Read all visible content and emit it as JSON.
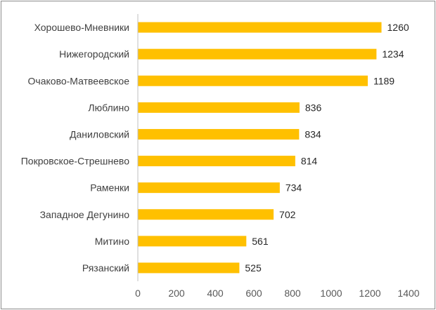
{
  "chart_data": {
    "type": "bar",
    "orientation": "horizontal",
    "categories": [
      "Хорошево-Мневники",
      "Нижегородский",
      "Очаково-Матвеевское",
      "Люблино",
      "Даниловский",
      "Покровское-Стрешнево",
      "Раменки",
      "Западное Дегунино",
      "Митино",
      "Рязанский"
    ],
    "values": [
      1260,
      1234,
      1189,
      836,
      834,
      814,
      734,
      702,
      561,
      525
    ],
    "xlim": [
      0,
      1400
    ],
    "xticks": [
      "0",
      "200",
      "400",
      "600",
      "800",
      "1000",
      "1200",
      "1400"
    ],
    "bar_color": "#FFC000",
    "grid": false,
    "legend": "none",
    "title": "",
    "xlabel": "",
    "ylabel": ""
  }
}
